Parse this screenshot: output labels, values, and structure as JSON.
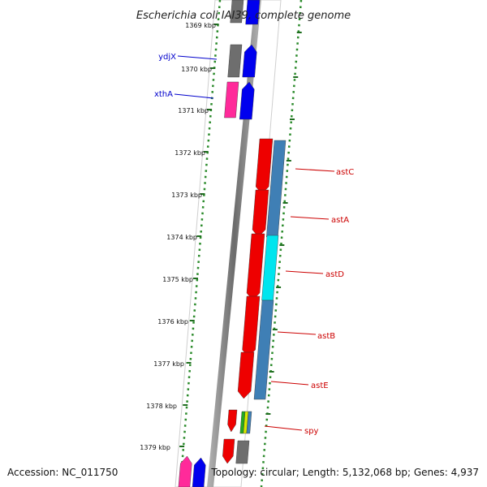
{
  "title": "Escherichia coli IAI39, complete genome",
  "footer": {
    "accession": "Accession: NC_011750",
    "topology": "Topology: circular; Length: 5,132,068 bp; Genes: 4,937"
  },
  "ruler_ticks": [
    {
      "label": "1369 kbp"
    },
    {
      "label": "1370 kbp"
    },
    {
      "label": "1371 kbp"
    },
    {
      "label": "1372 kbp"
    },
    {
      "label": "1373 kbp"
    },
    {
      "label": "1374 kbp"
    },
    {
      "label": "1375 kbp"
    },
    {
      "label": "1376 kbp"
    },
    {
      "label": "1377 kbp"
    },
    {
      "label": "1378 kbp"
    },
    {
      "label": "1379 kbp"
    }
  ],
  "gene_labels": [
    {
      "name": "ydjX",
      "color": "#0000cc"
    },
    {
      "name": "xthA",
      "color": "#0000cc"
    },
    {
      "name": "astC",
      "color": "#cc0000"
    },
    {
      "name": "astA",
      "color": "#cc0000"
    },
    {
      "name": "astD",
      "color": "#cc0000"
    },
    {
      "name": "astB",
      "color": "#cc0000"
    },
    {
      "name": "astE",
      "color": "#cc0000"
    },
    {
      "name": "spy",
      "color": "#cc0000"
    }
  ],
  "colors": {
    "backbone": "#8c8c8c",
    "dots": "#2a8a2a",
    "tick": "#1f6e1f",
    "cds_red": "#ee0000",
    "cds_blue": "#0000ee",
    "cds_pink": "#ff2a9a",
    "cds_gray": "#6e6e6e",
    "steel": "#3f7fb5",
    "cyan": "#00e5ee",
    "green": "#22aa22",
    "yellow": "#d8e800"
  }
}
